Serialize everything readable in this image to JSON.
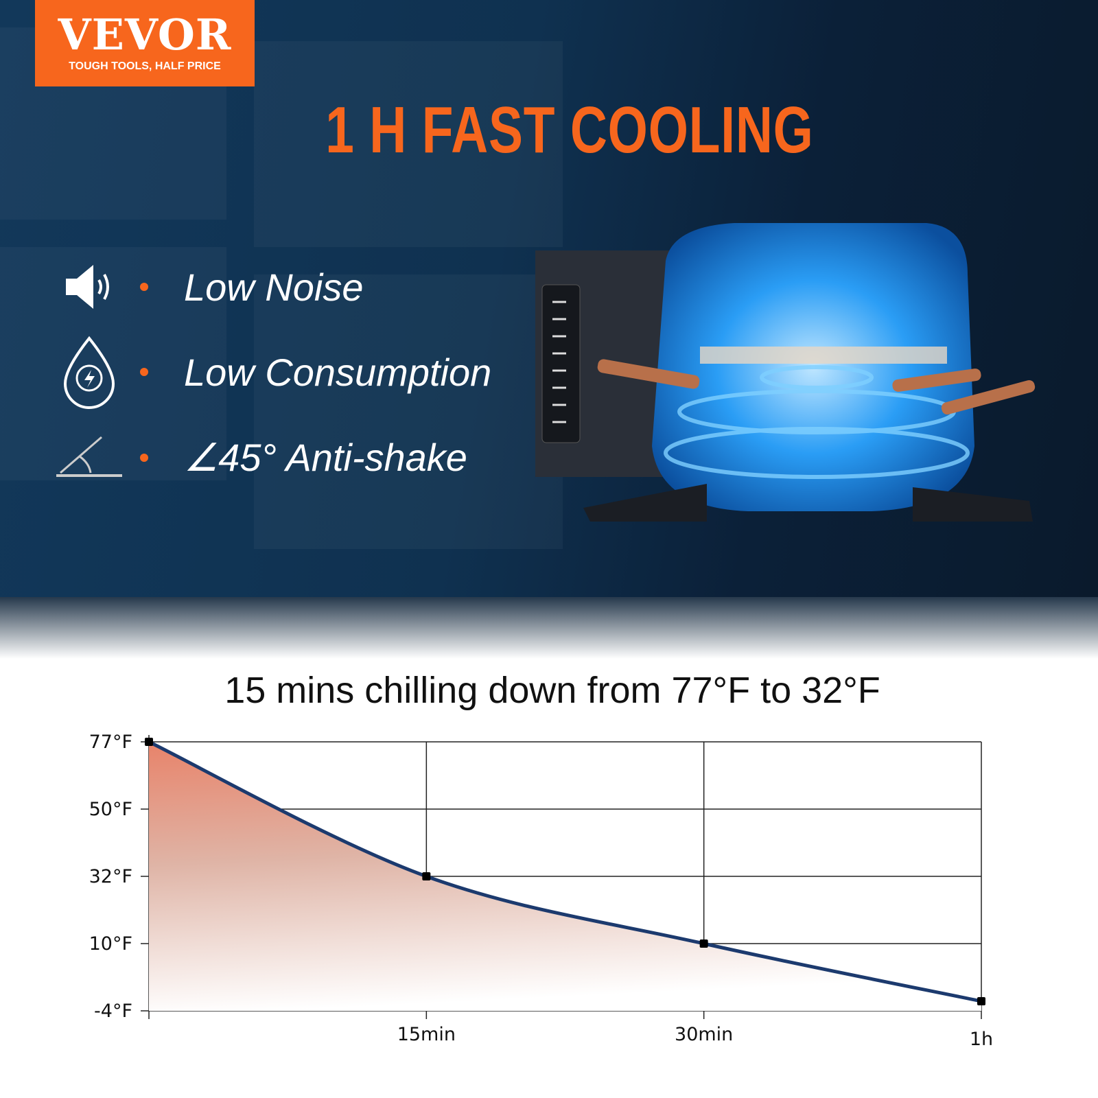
{
  "brand": {
    "name": "VEVOR",
    "tagline": "TOUGH TOOLS, HALF PRICE",
    "color": "#f7661d"
  },
  "headline": "1 H FAST COOLING",
  "features": [
    {
      "icon": "speaker-icon",
      "label": "Low Noise"
    },
    {
      "icon": "drop-lightning-icon",
      "label": "Low Consumption"
    },
    {
      "icon": "angle-icon",
      "label": "∠45° Anti-shake"
    }
  ],
  "chart_data": {
    "type": "area",
    "title": "15 mins chilling down from 77°F to 32°F",
    "x_tick_labels": [
      "",
      "15min",
      "30min",
      "1h"
    ],
    "y_tick_labels": [
      "77°F",
      "50°F",
      "32°F",
      "10°F",
      "-4°F"
    ],
    "x": [
      "0",
      "15min",
      "30min",
      "1h"
    ],
    "values": [
      77,
      32,
      10,
      -2
    ],
    "y_unit": "°F",
    "grid": true,
    "line_color": "#1c3a6e",
    "fill_color": "#e8836a"
  }
}
